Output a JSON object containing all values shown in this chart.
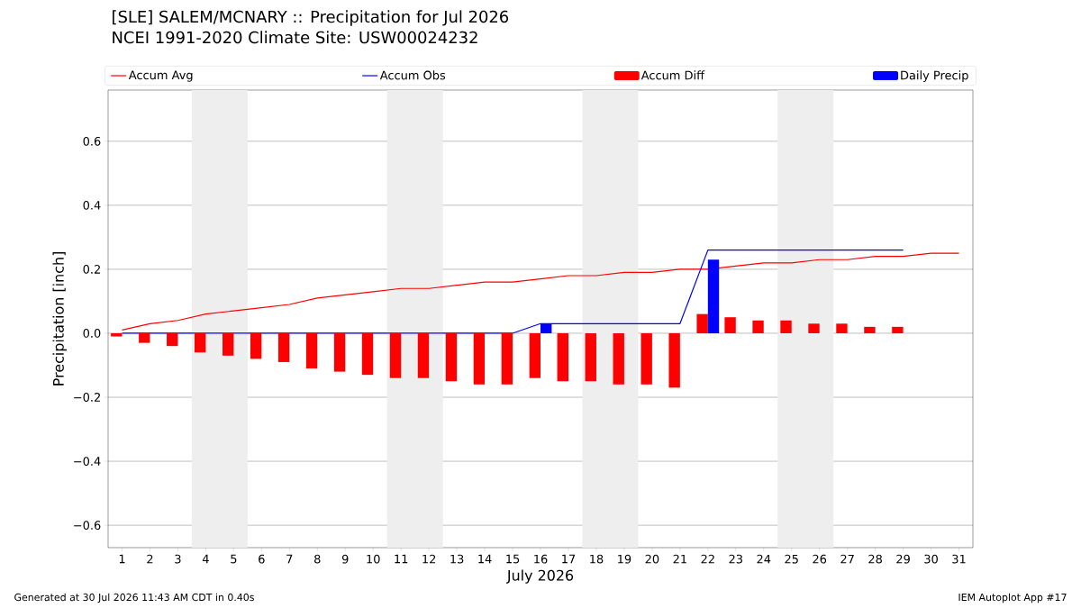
{
  "chart_data": {
    "type": "line",
    "title": "[SLE] SALEM/MCNARY :: Precipitation for Jul 2026",
    "subtitle": "NCEI 1991-2020 Climate Site: USW00024232",
    "xlabel": "July 2026",
    "ylabel": "Precipitation [inch]",
    "annotations": [
      "Generated at 30 Jul 2026 11:43 AM CDT in 0.40s",
      "IEM Autoplot App #17"
    ],
    "x": [
      1,
      2,
      3,
      4,
      5,
      6,
      7,
      8,
      9,
      10,
      11,
      12,
      13,
      14,
      15,
      16,
      17,
      18,
      19,
      20,
      21,
      22,
      23,
      24,
      25,
      26,
      27,
      28,
      29,
      30,
      31
    ],
    "series": [
      {
        "name": "Accum Avg",
        "color": "#ff0000",
        "values": [
          0.01,
          0.03,
          0.04,
          0.06,
          0.07,
          0.08,
          0.09,
          0.11,
          0.12,
          0.13,
          0.14,
          0.14,
          0.15,
          0.16,
          0.16,
          0.17,
          0.18,
          0.18,
          0.19,
          0.19,
          0.2,
          0.2,
          0.21,
          0.22,
          0.22,
          0.23,
          0.23,
          0.24,
          0.24,
          0.25,
          0.25
        ]
      },
      {
        "name": "Accum Obs",
        "color": "#0000ff",
        "x": [
          1,
          2,
          3,
          4,
          5,
          6,
          7,
          8,
          9,
          10,
          11,
          12,
          13,
          14,
          15,
          16,
          17,
          18,
          19,
          20,
          21,
          22,
          23,
          24,
          25,
          26,
          27,
          28,
          29
        ],
        "values": [
          0,
          0,
          0,
          0,
          0,
          0,
          0,
          0,
          0,
          0,
          0,
          0,
          0,
          0,
          0,
          0.03,
          0.03,
          0.03,
          0.03,
          0.03,
          0.03,
          0.26,
          0.26,
          0.26,
          0.26,
          0.26,
          0.26,
          0.26,
          0.26
        ]
      },
      {
        "name": "Accum Diff",
        "type": "bar",
        "color": "#ff0000",
        "x": [
          1,
          2,
          3,
          4,
          5,
          6,
          7,
          8,
          9,
          10,
          11,
          12,
          13,
          14,
          15,
          16,
          17,
          18,
          19,
          20,
          21,
          22,
          23,
          24,
          25,
          26,
          27,
          28,
          29
        ],
        "values": [
          -0.01,
          -0.03,
          -0.04,
          -0.06,
          -0.07,
          -0.08,
          -0.09,
          -0.11,
          -0.12,
          -0.13,
          -0.14,
          -0.14,
          -0.15,
          -0.16,
          -0.16,
          -0.14,
          -0.15,
          -0.15,
          -0.16,
          -0.16,
          -0.17,
          0.06,
          0.05,
          0.04,
          0.04,
          0.03,
          0.03,
          0.02,
          0.02
        ]
      },
      {
        "name": "Daily Precip",
        "type": "bar",
        "color": "#0000ff",
        "x": [
          1,
          2,
          3,
          4,
          5,
          6,
          7,
          8,
          9,
          10,
          11,
          12,
          13,
          14,
          15,
          16,
          17,
          18,
          19,
          20,
          21,
          22,
          23,
          24,
          25,
          26,
          27,
          28,
          29
        ],
        "values": [
          0,
          0,
          0,
          0,
          0,
          0,
          0,
          0,
          0,
          0,
          0,
          0,
          0,
          0,
          0,
          0.03,
          0,
          0,
          0,
          0,
          0,
          0.23,
          0,
          0,
          0,
          0,
          0,
          0,
          0
        ]
      }
    ],
    "bands": [
      {
        "axis": "x",
        "from": 3.5,
        "to": 5.5,
        "color": "#eeeeee"
      },
      {
        "axis": "x",
        "from": 10.5,
        "to": 12.5,
        "color": "#eeeeee"
      },
      {
        "axis": "x",
        "from": 17.5,
        "to": 19.5,
        "color": "#eeeeee"
      },
      {
        "axis": "x",
        "from": 24.5,
        "to": 26.5,
        "color": "#eeeeee"
      }
    ],
    "xlim": [
      0.5,
      31.5
    ],
    "ylim": [
      -0.67,
      0.76
    ],
    "xticks": [
      1,
      2,
      3,
      4,
      5,
      6,
      7,
      8,
      9,
      10,
      11,
      12,
      13,
      14,
      15,
      16,
      17,
      18,
      19,
      20,
      21,
      22,
      23,
      24,
      25,
      26,
      27,
      28,
      29,
      30,
      31
    ],
    "yticks": [
      {
        "value": -0.6,
        "label": "−0.6"
      },
      {
        "value": -0.4,
        "label": "−0.4"
      },
      {
        "value": -0.2,
        "label": "−0.2"
      },
      {
        "value": 0,
        "label": "0.0"
      },
      {
        "value": 0.2,
        "label": "0.2"
      },
      {
        "value": 0.4,
        "label": "0.4"
      },
      {
        "value": 0.6,
        "label": "0.6"
      }
    ],
    "grid": "y",
    "legend": "top",
    "marker": "none",
    "line_style": "solid"
  }
}
